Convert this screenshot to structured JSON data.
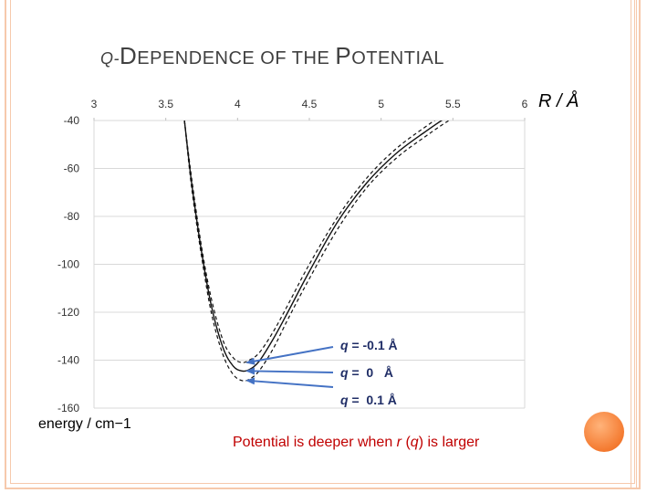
{
  "slide": {
    "title_prefix": "Q-",
    "title_parts": [
      "D",
      "EPENDENCE OF THE ",
      "P",
      "OTENTIAL"
    ],
    "caption_parts": [
      "Potential is deeper when ",
      "r",
      " (",
      "q",
      ") is larger"
    ],
    "accent_color": "#f47a30",
    "frame_color": "#f6c9ac"
  },
  "chart_data": {
    "type": "line",
    "title": "",
    "xlabel": "R / Å",
    "ylabel": "energy / cm−1",
    "x_axis_position": "top",
    "xlim": [
      3,
      6
    ],
    "ylim": [
      -160,
      -40
    ],
    "xticks": [
      3,
      3.5,
      4,
      4.5,
      5,
      5.5,
      6
    ],
    "xtick_labels": [
      "3",
      "3.5",
      "4",
      "4.5",
      "5",
      "5.5",
      "6"
    ],
    "yticks": [
      -40,
      -60,
      -80,
      -100,
      -120,
      -140,
      -160
    ],
    "ytick_labels": [
      "-40",
      "-60",
      "-80",
      "-100",
      "-120",
      "-140",
      "-160"
    ],
    "grid": "horizontal",
    "legend": "none",
    "series": [
      {
        "label_parts": [
          "q",
          " = -0.1 Å"
        ],
        "style": "dashed",
        "x": [
          3.63,
          3.68,
          3.75,
          3.82,
          3.9,
          3.97,
          4.03,
          4.08,
          4.15,
          4.25,
          4.35,
          4.5,
          4.7,
          4.9,
          5.1,
          5.3,
          5.5,
          5.75
        ],
        "y": [
          -40,
          -64,
          -93,
          -115,
          -132,
          -139,
          -141,
          -140,
          -137,
          -128,
          -117,
          -100,
          -80,
          -64,
          -52,
          -43,
          -35,
          -27
        ]
      },
      {
        "label_parts": [
          "q",
          " =  0   Å"
        ],
        "style": "solid",
        "x": [
          3.63,
          3.68,
          3.75,
          3.82,
          3.9,
          3.97,
          4.03,
          4.08,
          4.15,
          4.25,
          4.35,
          4.5,
          4.7,
          4.9,
          5.1,
          5.3,
          5.5,
          5.75
        ],
        "y": [
          -40,
          -66,
          -95,
          -118,
          -135,
          -142.5,
          -144.5,
          -144,
          -140.5,
          -131,
          -120,
          -103,
          -82,
          -66,
          -54,
          -45,
          -37,
          -29
        ]
      },
      {
        "label_parts": [
          "q",
          " =  0.1 Å"
        ],
        "style": "dashed",
        "x": [
          3.63,
          3.68,
          3.75,
          3.82,
          3.9,
          3.97,
          4.03,
          4.08,
          4.15,
          4.25,
          4.35,
          4.5,
          4.7,
          4.9,
          5.1,
          5.3,
          5.5,
          5.75
        ],
        "y": [
          -40,
          -68,
          -97,
          -121,
          -138,
          -146,
          -148.5,
          -148,
          -144.5,
          -135,
          -123,
          -106,
          -85,
          -68,
          -56,
          -47,
          -39,
          -31
        ]
      }
    ],
    "arrow_color": "#4472c4"
  }
}
